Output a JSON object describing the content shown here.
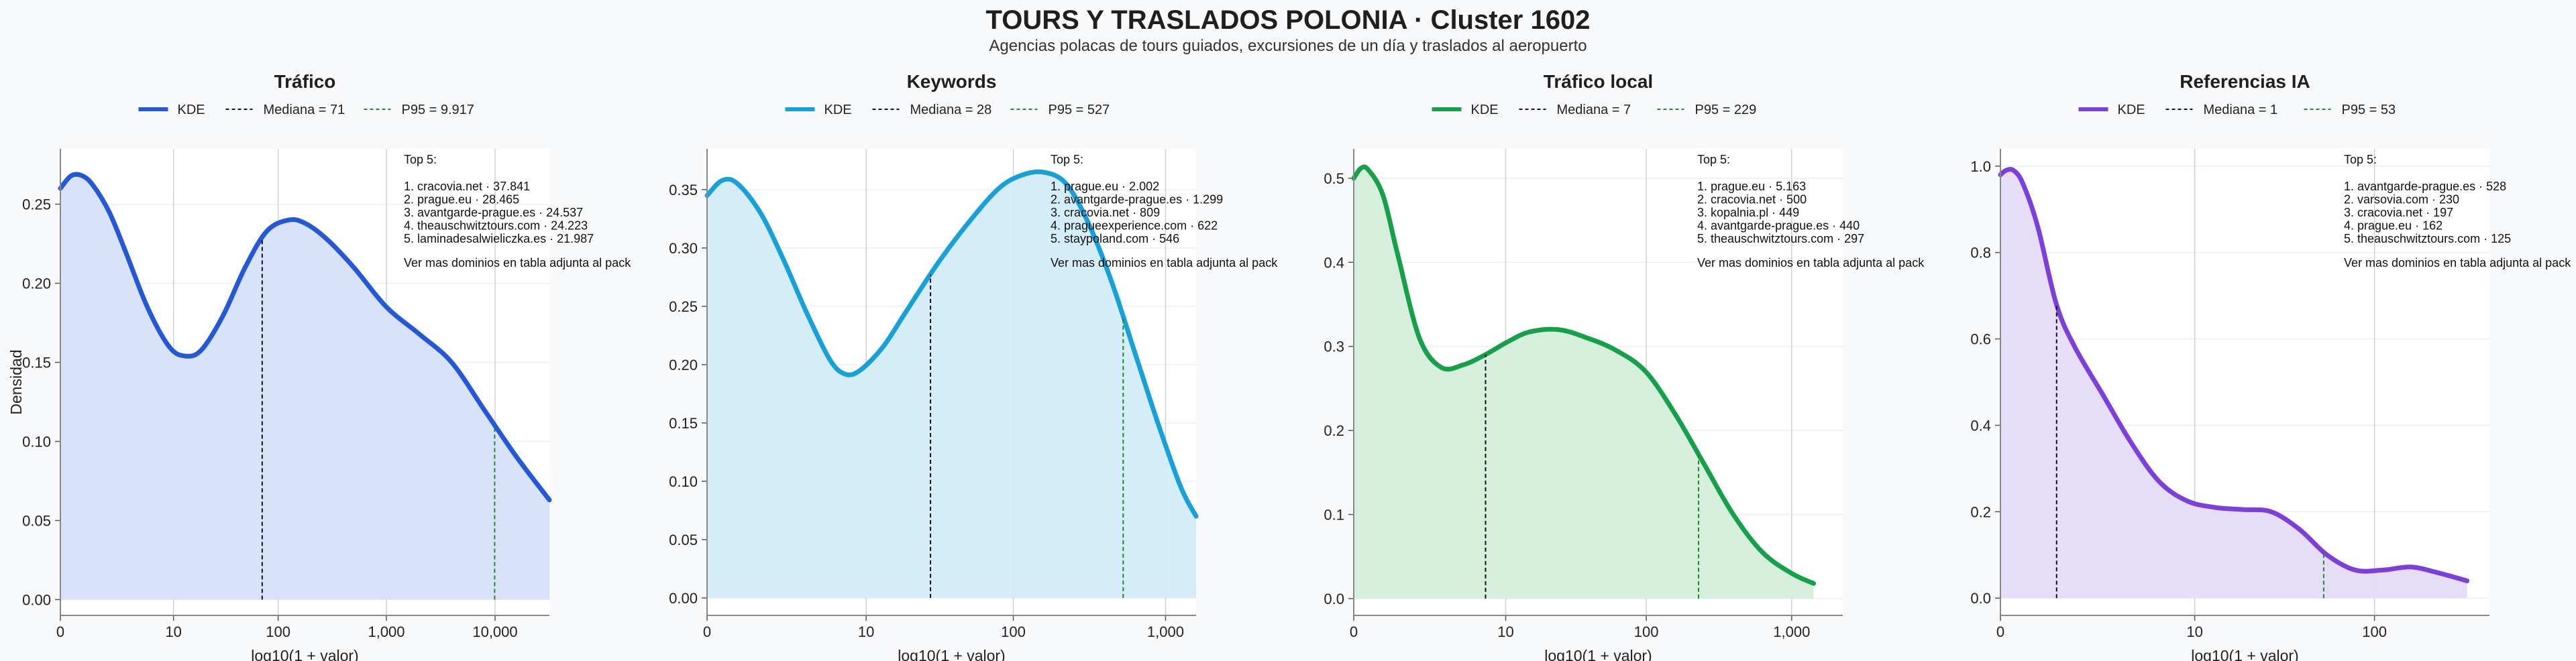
{
  "title": "TOURS Y TRASLADOS POLONIA · Cluster 1602",
  "subtitle": "Agencias polacas de tours guiados, excursiones de un día y traslados al aeropuerto",
  "shared": {
    "ylabel": "Densidad",
    "xlabel": "log10(1 + valor)",
    "legend_kde": "KDE",
    "top_header": "Top 5:",
    "top_footer": "Ver mas dominios en tabla adjunta al pack"
  },
  "chart_data": [
    {
      "type": "area",
      "title": "Tráfico",
      "color": "#2458d6",
      "fill": "#d6e0f8",
      "p95_color": "#1e8a2e",
      "median_label": "Mediana = 71",
      "p95_label": "P95 = 9.917",
      "median_x": 1.857,
      "p95_x": 3.996,
      "xlim": [
        0,
        4.5
      ],
      "ylim": [
        -0.01,
        0.285
      ],
      "xticks": [
        {
          "v": 0,
          "label": "0"
        },
        {
          "v": 1.041,
          "label": "10"
        },
        {
          "v": 2.004,
          "label": "100"
        },
        {
          "v": 3.0,
          "label": "1,000"
        },
        {
          "v": 4.0,
          "label": "10,000"
        }
      ],
      "yticks": [
        {
          "v": 0,
          "label": "0.00"
        },
        {
          "v": 0.05,
          "label": "0.05"
        },
        {
          "v": 0.1,
          "label": "0.10"
        },
        {
          "v": 0.15,
          "label": "0.15"
        },
        {
          "v": 0.2,
          "label": "0.20"
        },
        {
          "v": 0.25,
          "label": "0.25"
        }
      ],
      "x": [
        0,
        0.1,
        0.2,
        0.3,
        0.45,
        0.6,
        0.8,
        1.0,
        1.15,
        1.3,
        1.5,
        1.7,
        1.9,
        2.1,
        2.25,
        2.45,
        2.7,
        3.0,
        3.3,
        3.6,
        3.9,
        4.2,
        4.5
      ],
      "values": [
        0.26,
        0.268,
        0.268,
        0.262,
        0.245,
        0.22,
        0.185,
        0.16,
        0.154,
        0.158,
        0.18,
        0.21,
        0.233,
        0.24,
        0.238,
        0.228,
        0.21,
        0.185,
        0.168,
        0.15,
        0.12,
        0.09,
        0.063
      ],
      "top5": [
        "1. cracovia.net · 37.841",
        "2. prague.eu · 28.465",
        "3. avantgarde-prague.es · 24.537",
        "4. theauschwitztours.com · 24.223",
        "5. laminadesalwieliczka.es · 21.987"
      ]
    },
    {
      "type": "area",
      "title": "Keywords",
      "color": "#18a0d8",
      "fill": "#d2ecf8",
      "p95_color": "#1e8a2e",
      "median_label": "Mediana = 28",
      "p95_label": "P95 = 527",
      "median_x": 1.462,
      "p95_x": 2.723,
      "xlim": [
        0,
        3.2
      ],
      "ylim": [
        -0.015,
        0.385
      ],
      "xticks": [
        {
          "v": 0,
          "label": "0"
        },
        {
          "v": 1.041,
          "label": "10"
        },
        {
          "v": 2.004,
          "label": "100"
        },
        {
          "v": 3.0,
          "label": "1,000"
        }
      ],
      "yticks": [
        {
          "v": 0,
          "label": "0.00"
        },
        {
          "v": 0.05,
          "label": "0.05"
        },
        {
          "v": 0.1,
          "label": "0.10"
        },
        {
          "v": 0.15,
          "label": "0.15"
        },
        {
          "v": 0.2,
          "label": "0.20"
        },
        {
          "v": 0.25,
          "label": "0.25"
        },
        {
          "v": 0.3,
          "label": "0.30"
        },
        {
          "v": 0.35,
          "label": "0.35"
        }
      ],
      "x": [
        0,
        0.1,
        0.2,
        0.35,
        0.5,
        0.65,
        0.8,
        0.9,
        1.0,
        1.15,
        1.3,
        1.5,
        1.7,
        1.9,
        2.05,
        2.2,
        2.35,
        2.5,
        2.65,
        2.8,
        2.95,
        3.1,
        3.2
      ],
      "values": [
        0.345,
        0.358,
        0.355,
        0.33,
        0.29,
        0.245,
        0.205,
        0.192,
        0.195,
        0.215,
        0.245,
        0.285,
        0.32,
        0.35,
        0.362,
        0.365,
        0.355,
        0.32,
        0.27,
        0.21,
        0.15,
        0.095,
        0.07
      ],
      "top5": [
        "1. prague.eu · 2.002",
        "2. avantgarde-prague.es · 1.299",
        "3. cracovia.net · 809",
        "4. pragueexperience.com · 622",
        "5. staypoland.com · 546"
      ]
    },
    {
      "type": "area",
      "title": "Tráfico local",
      "color": "#16a04a",
      "fill": "#d4eedb",
      "p95_color": "#1e8a2e",
      "median_label": "Mediana = 7",
      "p95_label": "P95 = 229",
      "median_x": 0.903,
      "p95_x": 2.362,
      "xlim": [
        0,
        3.35
      ],
      "ylim": [
        -0.02,
        0.535
      ],
      "xticks": [
        {
          "v": 0,
          "label": "0"
        },
        {
          "v": 1.041,
          "label": "10"
        },
        {
          "v": 2.004,
          "label": "100"
        },
        {
          "v": 3.0,
          "label": "1,000"
        }
      ],
      "yticks": [
        {
          "v": 0,
          "label": "0.0"
        },
        {
          "v": 0.1,
          "label": "0.1"
        },
        {
          "v": 0.2,
          "label": "0.2"
        },
        {
          "v": 0.3,
          "label": "0.3"
        },
        {
          "v": 0.4,
          "label": "0.4"
        },
        {
          "v": 0.5,
          "label": "0.5"
        }
      ],
      "x": [
        0,
        0.05,
        0.1,
        0.2,
        0.3,
        0.45,
        0.6,
        0.75,
        0.9,
        1.05,
        1.2,
        1.4,
        1.6,
        1.8,
        2.0,
        2.2,
        2.4,
        2.6,
        2.8,
        3.0,
        3.15
      ],
      "values": [
        0.5,
        0.512,
        0.51,
        0.48,
        0.41,
        0.31,
        0.275,
        0.278,
        0.29,
        0.305,
        0.317,
        0.32,
        0.31,
        0.295,
        0.27,
        0.22,
        0.16,
        0.1,
        0.055,
        0.03,
        0.018
      ],
      "top5": [
        "1. prague.eu · 5.163",
        "2. cracovia.net · 500",
        "3. kopalnia.pl · 449",
        "4. avantgarde-prague.es · 440",
        "5. theauschwitztours.com · 297"
      ]
    },
    {
      "type": "area",
      "title": "Referencias IA",
      "color": "#7b3fdb",
      "fill": "#e5dbf8",
      "p95_color": "#1e8a2e",
      "median_label": "Mediana = 1",
      "p95_label": "P95 = 53",
      "median_x": 0.301,
      "p95_x": 1.732,
      "xlim": [
        0,
        2.62
      ],
      "ylim": [
        -0.04,
        1.04
      ],
      "xticks": [
        {
          "v": 0,
          "label": "0"
        },
        {
          "v": 1.041,
          "label": "10"
        },
        {
          "v": 2.004,
          "label": "100"
        }
      ],
      "yticks": [
        {
          "v": 0,
          "label": "0.0"
        },
        {
          "v": 0.2,
          "label": "0.2"
        },
        {
          "v": 0.4,
          "label": "0.4"
        },
        {
          "v": 0.6,
          "label": "0.6"
        },
        {
          "v": 0.8,
          "label": "0.8"
        },
        {
          "v": 1.0,
          "label": "1.0"
        }
      ],
      "x": [
        0,
        0.03,
        0.07,
        0.12,
        0.2,
        0.3,
        0.4,
        0.55,
        0.7,
        0.85,
        1.0,
        1.15,
        1.3,
        1.45,
        1.6,
        1.75,
        1.9,
        2.05,
        2.2,
        2.35,
        2.5
      ],
      "values": [
        0.98,
        0.99,
        0.99,
        0.96,
        0.86,
        0.68,
        0.58,
        0.47,
        0.36,
        0.27,
        0.225,
        0.21,
        0.205,
        0.2,
        0.16,
        0.1,
        0.065,
        0.065,
        0.072,
        0.058,
        0.04
      ],
      "top5": [
        "1. avantgarde-prague.es · 528",
        "2. varsovia.com · 230",
        "3. cracovia.net · 197",
        "4. prague.eu · 162",
        "5. theauschwitztours.com · 125"
      ]
    }
  ]
}
